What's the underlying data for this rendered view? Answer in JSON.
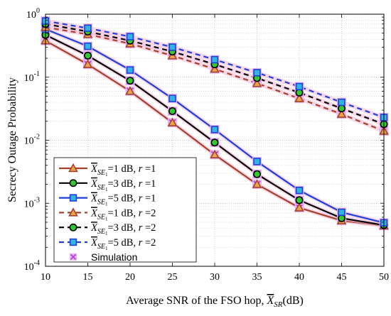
{
  "chart_data": {
    "type": "line",
    "ylabel": "Secrecy Outage Probability",
    "xlabel_prefix": "Average SNR of the FSO hop, ",
    "xlabel_symbol": "X",
    "xlabel_subscript": "SR",
    "xlabel_suffix": "(dB)",
    "y_scale": "log",
    "xlim": [
      10,
      50
    ],
    "ylim": [
      0.0001,
      1
    ],
    "grid": true,
    "legend_position": "bottom-left",
    "x": [
      10,
      15,
      20,
      25,
      30,
      35,
      40,
      45,
      50
    ],
    "x_tick_labels": [
      "10",
      "15",
      "20",
      "25",
      "30",
      "35",
      "40",
      "45",
      "50"
    ],
    "y_tick_labels": [
      {
        "value": 1,
        "base": "10",
        "exp": "0"
      },
      {
        "value": 0.1,
        "base": "10",
        "exp": "-1"
      },
      {
        "value": 0.01,
        "base": "10",
        "exp": "-2"
      },
      {
        "value": 0.001,
        "base": "10",
        "exp": "-3"
      },
      {
        "value": 0.0001,
        "base": "10",
        "exp": "-4"
      }
    ],
    "series": [
      {
        "legend_value": "1",
        "r": "1",
        "color": "#a5402a",
        "dash": "solid",
        "marker": "triangle",
        "values": [
          0.38,
          0.16,
          0.06,
          0.019,
          0.0059,
          0.002,
          0.00085,
          0.00053,
          0.00044
        ]
      },
      {
        "legend_value": "3",
        "r": "1",
        "color": "#000000",
        "dash": "solid",
        "marker": "circle",
        "values": [
          0.47,
          0.22,
          0.088,
          0.029,
          0.0092,
          0.0029,
          0.00112,
          0.00058,
          0.00045
        ]
      },
      {
        "legend_value": "5",
        "r": "1",
        "color": "#1f3fd8",
        "dash": "solid",
        "marker": "square",
        "values": [
          0.58,
          0.31,
          0.13,
          0.046,
          0.0148,
          0.0046,
          0.0016,
          0.00072,
          0.00049
        ]
      },
      {
        "legend_value": "1",
        "r": "2",
        "color": "#a5402a",
        "dash": "dashed",
        "marker": "triangle",
        "values": [
          0.62,
          0.48,
          0.34,
          0.22,
          0.135,
          0.08,
          0.046,
          0.026,
          0.014
        ]
      },
      {
        "legend_value": "3",
        "r": "2",
        "color": "#000000",
        "dash": "dashed",
        "marker": "circle",
        "values": [
          0.7,
          0.53,
          0.38,
          0.255,
          0.16,
          0.097,
          0.057,
          0.032,
          0.018
        ]
      },
      {
        "legend_value": "5",
        "r": "2",
        "color": "#1f3fd8",
        "dash": "dashed",
        "marker": "square",
        "values": [
          0.78,
          0.6,
          0.44,
          0.3,
          0.19,
          0.118,
          0.071,
          0.04,
          0.023
        ]
      }
    ],
    "legend": {
      "symbol": "X",
      "subscript_main": "SE",
      "subscript_sub": "1",
      "unit": "dB",
      "r_label": "r",
      "simulation_label": "Simulation",
      "simulation_color": "#b63fe0"
    }
  }
}
